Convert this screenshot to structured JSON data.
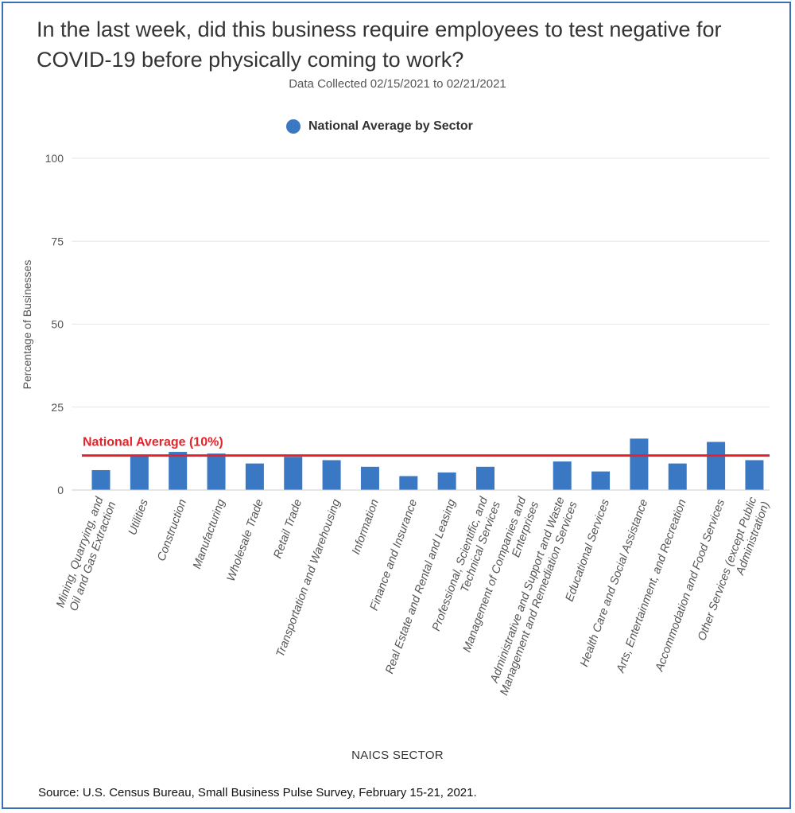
{
  "colors": {
    "bar": "#3a78c3",
    "average_line": "#e8222a",
    "grid": "#e6e6e6",
    "frame": "#3a6fb5"
  },
  "footer": {
    "source": "Source: U.S. Census Bureau, Small Business Pulse Survey, February 15-21, 2021."
  },
  "chart_data": {
    "type": "bar",
    "title": "In the last week, did this business require employees to test negative for COVID-19 before physically coming to work?",
    "subtitle": "Data Collected 02/15/2021 to 02/21/2021",
    "legend": [
      "National Average by Sector"
    ],
    "legend_position": "top-center",
    "xlabel": "NAICS SECTOR",
    "ylabel": "Percentage of Businesses",
    "ylim": [
      0,
      100
    ],
    "yticks": [
      0,
      25,
      50,
      75,
      100
    ],
    "grid": true,
    "categories": [
      "Mining, Quarrying, and Oil and Gas Extraction",
      "Utilities",
      "Construction",
      "Manufacturing",
      "Wholesale Trade",
      "Retail Trade",
      "Transportation and Warehousing",
      "Information",
      "Finance and Insurance",
      "Real Estate and Rental and Leasing",
      "Professional, Scientific, and Technical Services",
      "Management of Companies and Enterprises",
      "Administrative and Support and Waste Management and Remediation Services",
      "Educational Services",
      "Health Care and Social Assistance",
      "Arts, Entertainment, and Recreation",
      "Accommodation and Food Services",
      "Other Services (except Public Administration)"
    ],
    "category_label_lines": [
      [
        "Mining, Quarrying, and",
        "Oil and Gas Extraction"
      ],
      [
        "Utilities"
      ],
      [
        "Construction"
      ],
      [
        "Manufacturing"
      ],
      [
        "Wholesale Trade"
      ],
      [
        "Retail Trade"
      ],
      [
        "Transportation and Warehousing"
      ],
      [
        "Information"
      ],
      [
        "Finance and Insurance"
      ],
      [
        "Real Estate and Rental and Leasing"
      ],
      [
        "Professional, Scientific, and",
        "Technical Services"
      ],
      [
        "Management of Companies and",
        "Enterprises"
      ],
      [
        "Administrative and Support and Waste",
        "Management and Remediation Services"
      ],
      [
        "Educational Services"
      ],
      [
        "Health Care and Social Assistance"
      ],
      [
        "Arts, Entertainment, and Recreation"
      ],
      [
        "Accommodation and Food Services"
      ],
      [
        "Other Services (except Public",
        "Administration)"
      ]
    ],
    "series": [
      {
        "name": "National Average by Sector",
        "values": [
          6,
          10.5,
          11.5,
          11,
          8,
          10,
          9,
          7,
          4.2,
          5.3,
          7,
          null,
          8.6,
          5.6,
          15.5,
          8,
          14.5,
          9
        ]
      }
    ],
    "reference_line": {
      "label": "National Average (10%)",
      "value": 10.4
    }
  }
}
